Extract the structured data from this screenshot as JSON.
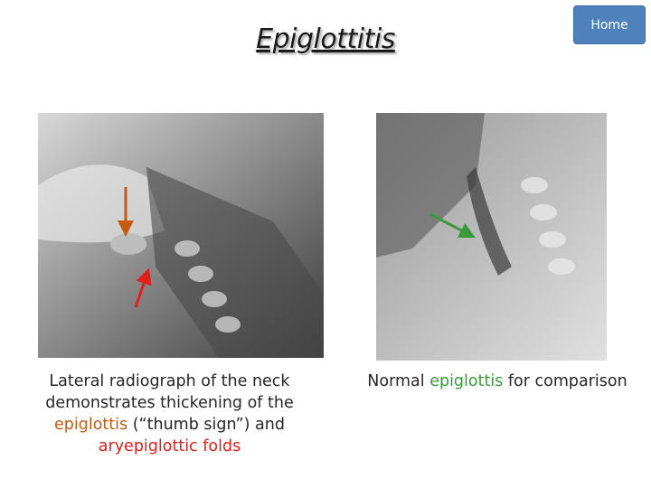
{
  "header": {
    "title": "Epiglottitis",
    "home_button": "Home"
  },
  "left_panel": {
    "caption": [
      "Lateral radiograph of the neck",
      "demonstrates thickening of the",
      "epiglottis",
      "(“thumb sign”) and",
      "aryepiglottic folds"
    ]
  },
  "right_panel": {
    "caption": [
      "Normal",
      "epiglottis",
      "for comparison"
    ]
  }
}
